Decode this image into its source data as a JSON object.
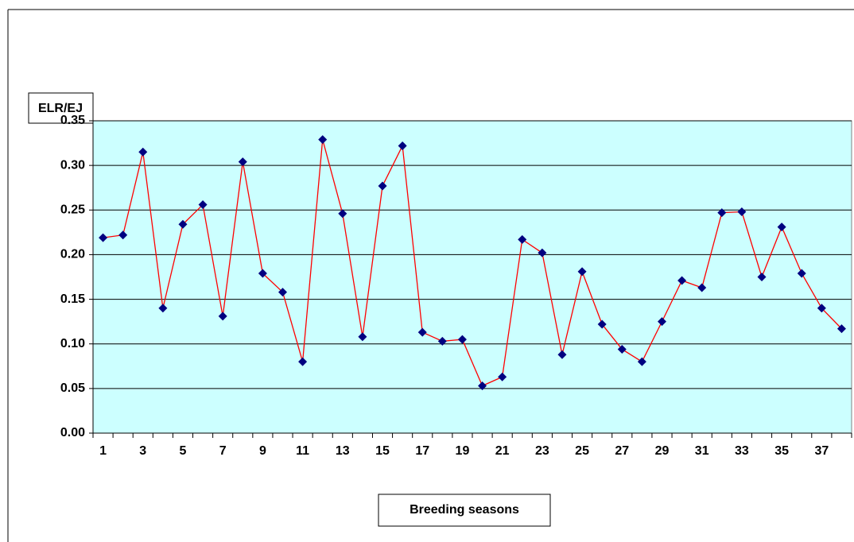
{
  "chart_data": {
    "type": "line",
    "y_label": "ELR/EJ",
    "x_label": "Breeding seasons",
    "categories": [
      1,
      null,
      3,
      null,
      5,
      null,
      7,
      null,
      9,
      null,
      11,
      null,
      13,
      null,
      15,
      null,
      17,
      null,
      19,
      null,
      21,
      null,
      23,
      null,
      25,
      null,
      27,
      null,
      29,
      null,
      31,
      null,
      33,
      null,
      35,
      null,
      37,
      null
    ],
    "series": [
      {
        "color": "#ff0000",
        "marker_color": "#000080",
        "values": [
          0.219,
          0.222,
          0.315,
          0.14,
          0.234,
          0.256,
          0.131,
          0.304,
          0.179,
          0.158,
          0.08,
          0.329,
          0.246,
          0.108,
          0.277,
          0.322,
          0.113,
          0.103,
          0.105,
          0.053,
          0.063,
          0.217,
          0.202,
          0.088,
          0.181,
          0.122,
          0.094,
          0.08,
          0.125,
          0.171,
          0.163,
          0.247,
          0.248,
          0.175,
          0.231,
          0.179,
          0.14,
          0.117
        ]
      }
    ],
    "ylim": [
      0,
      0.35
    ],
    "yticks": [
      {
        "value": 0,
        "label": "0.00"
      },
      {
        "value": 0.05,
        "label": "0.05"
      },
      {
        "value": 0.1,
        "label": "0.10"
      },
      {
        "value": 0.15,
        "label": "0.15"
      },
      {
        "value": 0.2,
        "label": "0.20"
      },
      {
        "value": 0.25,
        "label": "0.25"
      },
      {
        "value": 0.3,
        "label": "0.30"
      },
      {
        "value": 0.35,
        "label": "0.35"
      }
    ],
    "grid": true,
    "plot_background": "#ccffff"
  }
}
